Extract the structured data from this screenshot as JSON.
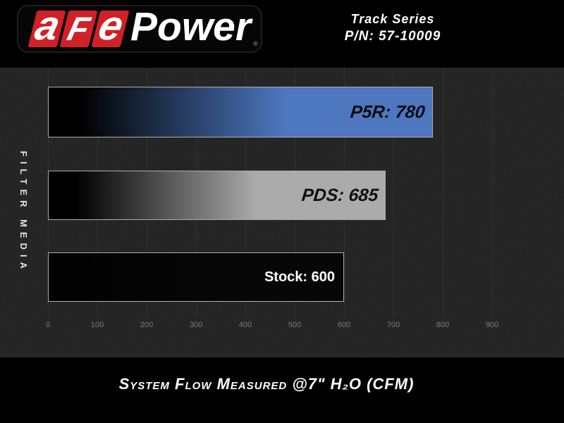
{
  "header": {
    "logo": {
      "tiles": [
        "a",
        "F",
        "e"
      ],
      "wordmark": "Power",
      "registered": "®",
      "tile_color": "#cf2127"
    },
    "series": "Track Series",
    "part_number": "P/N: 57-10009"
  },
  "chart_data": {
    "type": "bar",
    "orientation": "horizontal",
    "title": "System Flow Measured @7\" H₂O (CFM)",
    "ylabel": "FILTER MEDIA",
    "categories": [
      "P5R",
      "PDS",
      "Stock"
    ],
    "values": [
      780,
      685,
      600
    ],
    "xticks": [
      0,
      100,
      200,
      300,
      400,
      500,
      600,
      700,
      800,
      900
    ],
    "xlim": [
      0,
      960
    ],
    "grid": "vertical",
    "legend": "none",
    "background": "#141414",
    "bars": [
      {
        "name": "P5R",
        "value": 780,
        "label": "P5R: 780",
        "fill_from": "#000000",
        "fill_to": "#4d78c0",
        "label_color": "#0b0b14",
        "label_font": "techno"
      },
      {
        "name": "PDS",
        "value": 685,
        "label": "PDS: 685",
        "fill_from": "#000000",
        "fill_to": "#ababab",
        "label_color": "#101010",
        "label_font": "techno"
      },
      {
        "name": "Stock",
        "value": 600,
        "label": "Stock: 600",
        "fill_from": "#020202",
        "fill_to": "#070707",
        "label_color": "#ffffff",
        "label_font": "standard"
      }
    ]
  }
}
